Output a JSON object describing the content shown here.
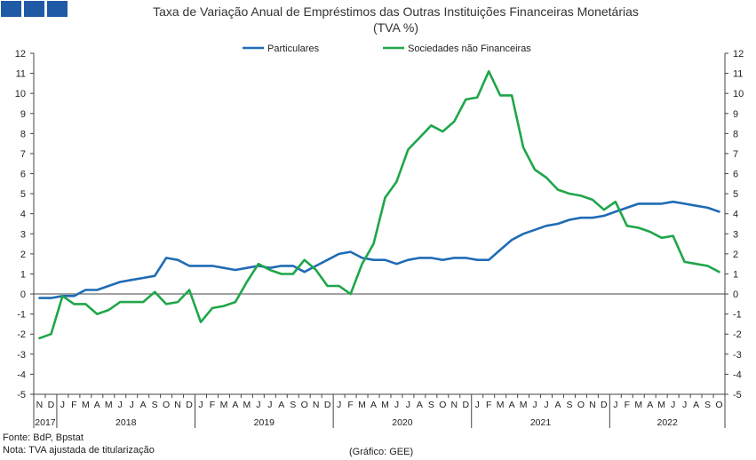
{
  "logo": {
    "colors": [
      "#1f5aa6",
      "#1f5aa6",
      "#1f5aa6"
    ]
  },
  "chart_data": {
    "type": "line",
    "title": "Taxa de Variação Anual de Empréstimos das Outras Instituições Financeiras Monetárias",
    "subtitle": "(TVA %)",
    "ylim": [
      -5,
      12
    ],
    "yticks": [
      -5,
      -4,
      -3,
      -2,
      -1,
      0,
      1,
      2,
      3,
      4,
      5,
      6,
      7,
      8,
      9,
      10,
      11,
      12
    ],
    "month_labels": [
      "N",
      "D",
      "J",
      "F",
      "M",
      "A",
      "M",
      "J",
      "J",
      "A",
      "S",
      "O",
      "N",
      "D",
      "J",
      "F",
      "M",
      "A",
      "M",
      "J",
      "J",
      "A",
      "S",
      "O",
      "N",
      "D",
      "J",
      "F",
      "M",
      "A",
      "M",
      "J",
      "J",
      "A",
      "S",
      "O",
      "N",
      "D",
      "J",
      "F",
      "M",
      "A",
      "M",
      "J",
      "J",
      "A",
      "S",
      "O",
      "N",
      "D",
      "J",
      "F",
      "M",
      "A",
      "M",
      "J",
      "J",
      "A",
      "S",
      "O"
    ],
    "years": [
      {
        "label": "2017",
        "start": 0,
        "count": 2
      },
      {
        "label": "2018",
        "start": 2,
        "count": 12
      },
      {
        "label": "2019",
        "start": 14,
        "count": 12
      },
      {
        "label": "2020",
        "start": 26,
        "count": 12
      },
      {
        "label": "2021",
        "start": 38,
        "count": 12
      },
      {
        "label": "2022",
        "start": 50,
        "count": 10
      }
    ],
    "legend_position": "top-center",
    "series": [
      {
        "name": "Particulares",
        "color": "#1f6bb5",
        "values": [
          -0.2,
          -0.2,
          -0.1,
          -0.1,
          0.2,
          0.2,
          0.4,
          0.6,
          0.7,
          0.8,
          0.9,
          1.8,
          1.7,
          1.4,
          1.4,
          1.4,
          1.3,
          1.2,
          1.3,
          1.4,
          1.3,
          1.4,
          1.4,
          1.1,
          1.4,
          1.7,
          2.0,
          2.1,
          1.8,
          1.7,
          1.7,
          1.5,
          1.7,
          1.8,
          1.8,
          1.7,
          1.8,
          1.8,
          1.7,
          1.7,
          2.2,
          2.7,
          3.0,
          3.2,
          3.4,
          3.5,
          3.7,
          3.8,
          3.8,
          3.9,
          4.1,
          4.3,
          4.5,
          4.5,
          4.5,
          4.6,
          4.5,
          4.4,
          4.3,
          4.1
        ]
      },
      {
        "name": "Sociedades não Financeiras",
        "color": "#1fa64a",
        "values": [
          -2.2,
          -2.0,
          -0.1,
          -0.5,
          -0.5,
          -1.0,
          -0.8,
          -0.4,
          -0.4,
          -0.4,
          0.1,
          -0.5,
          -0.4,
          0.2,
          -1.4,
          -0.7,
          -0.6,
          -0.4,
          0.6,
          1.5,
          1.2,
          1.0,
          1.0,
          1.7,
          1.2,
          0.4,
          0.4,
          0.0,
          1.5,
          2.5,
          4.8,
          5.6,
          7.2,
          7.8,
          8.4,
          8.1,
          8.6,
          9.7,
          9.8,
          11.1,
          9.9,
          9.9,
          7.3,
          6.2,
          5.8,
          5.2,
          5.0,
          4.9,
          4.7,
          4.2,
          4.6,
          3.4,
          3.3,
          3.1,
          2.8,
          2.9,
          1.6,
          1.5,
          1.4,
          1.1
        ]
      }
    ]
  },
  "footer": {
    "source": "Fonte: BdP, Bpstat",
    "note": "Nota: TVA ajustada de titularização",
    "credit": "(Gráfico: GEE)"
  }
}
